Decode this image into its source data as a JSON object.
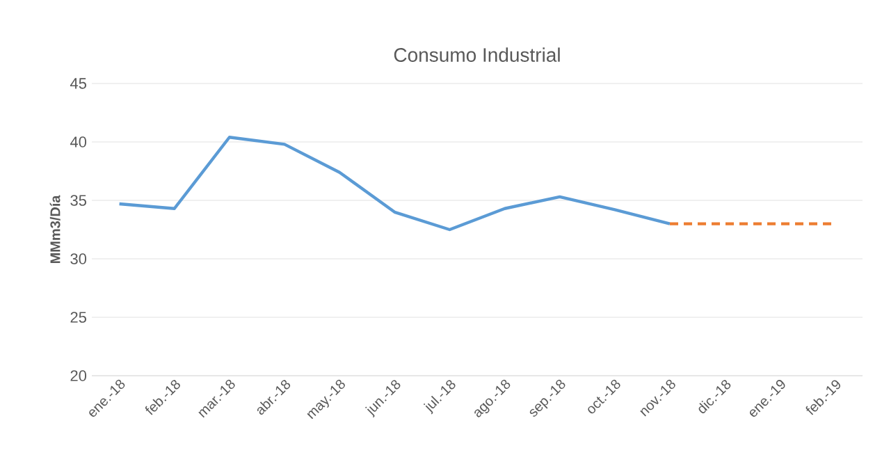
{
  "chart_data": {
    "type": "line",
    "title": "Consumo Industrial",
    "ylabel": "MMm3/Día",
    "categories": [
      "ene.-18",
      "feb.-18",
      "mar.-18",
      "abr.-18",
      "may.-18",
      "jun.-18",
      "jul.-18",
      "ago.-18",
      "sep.-18",
      "oct.-18",
      "nov.-18",
      "dic.-18",
      "ene.-19",
      "feb.-19"
    ],
    "series": [
      {
        "color": "#5b9bd5",
        "line_style": "solid",
        "values": [
          34.7,
          34.3,
          40.4,
          39.8,
          37.4,
          34.0,
          32.5,
          34.3,
          35.3,
          34.2,
          33.0,
          null,
          null,
          null
        ]
      },
      {
        "color": "#ed7d31",
        "line_style": "dashed",
        "values": [
          null,
          null,
          null,
          null,
          null,
          null,
          null,
          null,
          null,
          null,
          33.0,
          33.0,
          33.0,
          33.0
        ]
      }
    ],
    "ylim": [
      20,
      45
    ],
    "yticks": [
      20,
      25,
      30,
      35,
      40,
      45
    ],
    "grid": "y",
    "legend": false,
    "marker": "none"
  }
}
